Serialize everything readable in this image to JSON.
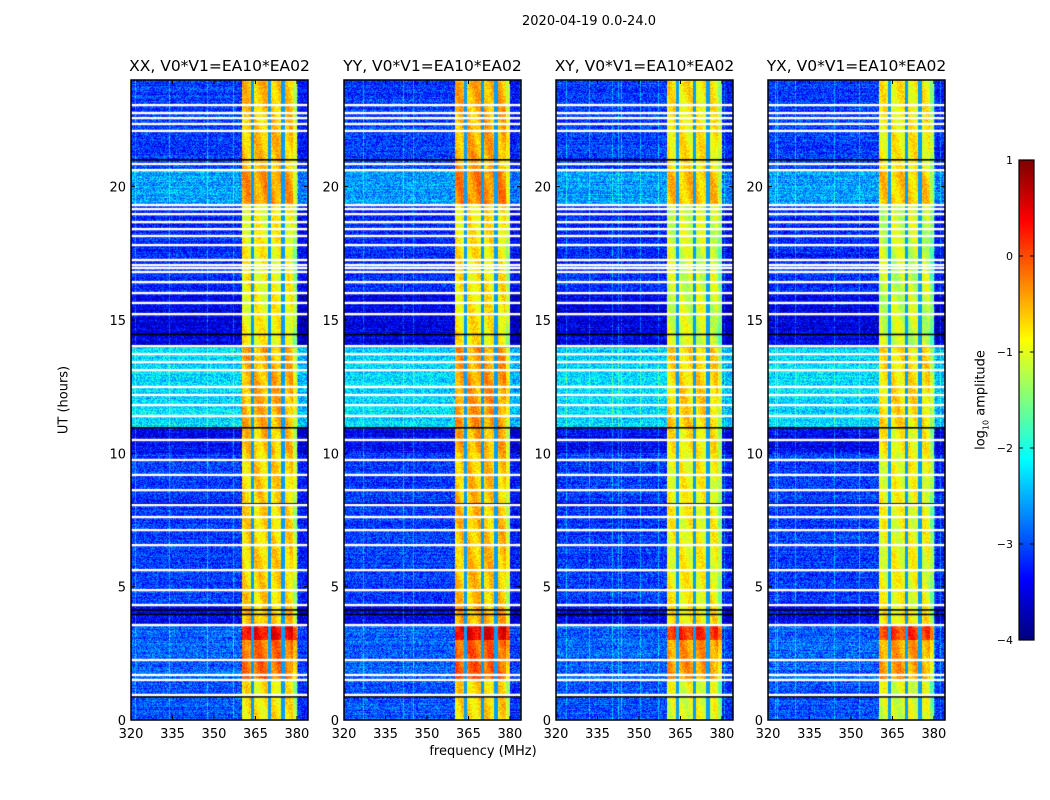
{
  "chart_data": {
    "type": "heatmap",
    "suptitle": "2020-04-19 0.0-24.0",
    "xlabel": "frequency (MHz)",
    "ylabel": "UT (hours)",
    "xlim": [
      320,
      384
    ],
    "ylim": [
      0,
      24
    ],
    "xticks": [
      "320",
      "335",
      "350",
      "365",
      "380"
    ],
    "yticks": [
      "0",
      "5",
      "10",
      "15",
      "20"
    ],
    "panels": [
      {
        "title": "XX, V0*V1=EA10*EA02",
        "band_offset": 0.0
      },
      {
        "title": "YY, V0*V1=EA10*EA02",
        "band_offset": 0.1
      },
      {
        "title": "XY, V0*V1=EA10*EA02",
        "band_offset": -0.2
      },
      {
        "title": "YX, V0*V1=EA10*EA02",
        "band_offset": -0.25
      }
    ],
    "colorbar": {
      "label_prefix": "log",
      "label_sub": "10",
      "label_suffix": " amplitude",
      "colormap": "jet",
      "range": [
        -4,
        1
      ],
      "ticks": [
        "1",
        "0",
        "−1",
        "−2",
        "−3",
        "−4"
      ]
    },
    "rfi_band_mhz": [
      360,
      380
    ],
    "band_gaps_mhz": [
      364,
      370,
      375
    ],
    "segments": [
      {
        "from": 0,
        "to": 1.5,
        "bg": -3.0,
        "band": -0.8
      },
      {
        "from": 1.5,
        "to": 3.0,
        "bg": -2.9,
        "band": -0.2
      },
      {
        "from": 3.0,
        "to": 3.6,
        "bg": -2.9,
        "band": 0.35
      },
      {
        "from": 3.6,
        "to": 4.3,
        "bg": -3.4,
        "band": -0.6
      },
      {
        "from": 4.3,
        "to": 10.0,
        "bg": -3.1,
        "band": -0.7
      },
      {
        "from": 10.0,
        "to": 11.0,
        "bg": -3.4,
        "band": -0.6
      },
      {
        "from": 11.0,
        "to": 14.0,
        "bg": -2.3,
        "band": -0.5
      },
      {
        "from": 14.0,
        "to": 16.0,
        "bg": -3.5,
        "band": -0.9
      },
      {
        "from": 16.0,
        "to": 19.3,
        "bg": -3.2,
        "band": -0.9
      },
      {
        "from": 19.3,
        "to": 20.6,
        "bg": -2.6,
        "band": -0.4
      },
      {
        "from": 20.6,
        "to": 24.0,
        "bg": -3.1,
        "band": -0.6
      }
    ],
    "flagged_hours": [
      0.94,
      1.5,
      1.69,
      2.25,
      3.56,
      4.31,
      4.87,
      5.62,
      6.56,
      7.12,
      7.61,
      8.06,
      8.62,
      9.19,
      9.75,
      10.5,
      11.4,
      11.81,
      12.19,
      12.49,
      13.12,
      13.42,
      13.72,
      14.02,
      15.22,
      15.64,
      16.01,
      16.42,
      16.8,
      16.95,
      17.06,
      17.25,
      17.81,
      18.15,
      18.41,
      18.67,
      18.97,
      19.16,
      19.31,
      20.62,
      20.85,
      22.09,
      22.35,
      22.57,
      22.76,
      23.06
    ],
    "dark_hours": [
      0.86,
      3.95,
      4.12,
      8.1,
      10.95,
      14.0,
      14.45,
      21.0
    ]
  }
}
